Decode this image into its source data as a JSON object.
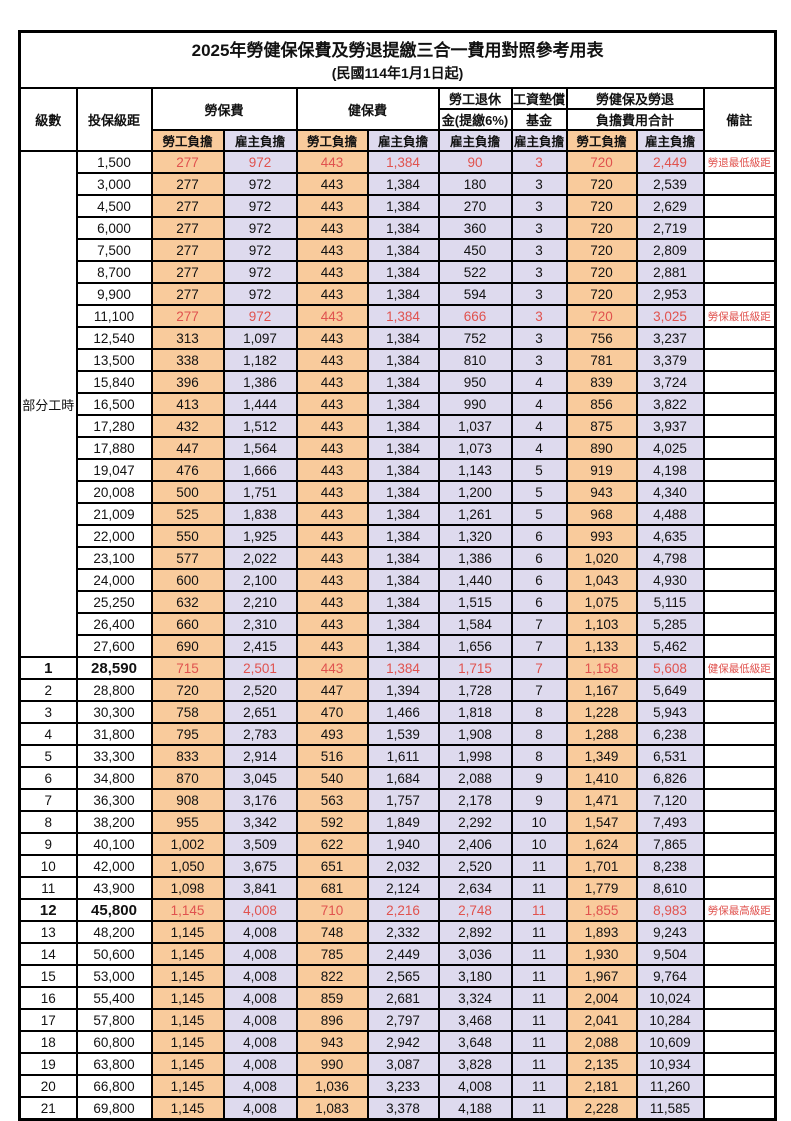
{
  "title": "2025年勞健保保費及勞退提繳三合一費用對照參考用表",
  "subtitle": "(民國114年1月1日起)",
  "header": {
    "level": "級數",
    "salary_bracket": "投保級距",
    "labor_fee": "勞保費",
    "health_fee": "健保費",
    "pension_line1": "勞工退休",
    "pension_line2": "金(提繳6%)",
    "wage_fund_line1": "工資墊償",
    "wage_fund_line2": "基金",
    "total_line1": "勞健保及勞退",
    "total_line2": "負擔費用合計",
    "remark": "備註",
    "employee_share": "勞工負擔",
    "employer_share": "雇主負擔"
  },
  "part_time_label": "部分工時",
  "colors": {
    "employee_bg": "#f9cb9c",
    "employer_bg": "#dedaee",
    "highlight_red": "#e0524e",
    "border": "#000000"
  },
  "rows": [
    {
      "level": "",
      "amount": "1,500",
      "cells": [
        "277",
        "972",
        "443",
        "1,384",
        "90",
        "3",
        "720",
        "2,449"
      ],
      "remark": "勞退最低級距",
      "red": true,
      "bold": false
    },
    {
      "level": "",
      "amount": "3,000",
      "cells": [
        "277",
        "972",
        "443",
        "1,384",
        "180",
        "3",
        "720",
        "2,539"
      ],
      "remark": "",
      "red": false,
      "bold": false
    },
    {
      "level": "",
      "amount": "4,500",
      "cells": [
        "277",
        "972",
        "443",
        "1,384",
        "270",
        "3",
        "720",
        "2,629"
      ],
      "remark": "",
      "red": false,
      "bold": false
    },
    {
      "level": "",
      "amount": "6,000",
      "cells": [
        "277",
        "972",
        "443",
        "1,384",
        "360",
        "3",
        "720",
        "2,719"
      ],
      "remark": "",
      "red": false,
      "bold": false
    },
    {
      "level": "",
      "amount": "7,500",
      "cells": [
        "277",
        "972",
        "443",
        "1,384",
        "450",
        "3",
        "720",
        "2,809"
      ],
      "remark": "",
      "red": false,
      "bold": false
    },
    {
      "level": "",
      "amount": "8,700",
      "cells": [
        "277",
        "972",
        "443",
        "1,384",
        "522",
        "3",
        "720",
        "2,881"
      ],
      "remark": "",
      "red": false,
      "bold": false
    },
    {
      "level": "",
      "amount": "9,900",
      "cells": [
        "277",
        "972",
        "443",
        "1,384",
        "594",
        "3",
        "720",
        "2,953"
      ],
      "remark": "",
      "red": false,
      "bold": false
    },
    {
      "level": "",
      "amount": "11,100",
      "cells": [
        "277",
        "972",
        "443",
        "1,384",
        "666",
        "3",
        "720",
        "3,025"
      ],
      "remark": "勞保最低級距",
      "red": true,
      "bold": false
    },
    {
      "level": "",
      "amount": "12,540",
      "cells": [
        "313",
        "1,097",
        "443",
        "1,384",
        "752",
        "3",
        "756",
        "3,237"
      ],
      "remark": "",
      "red": false,
      "bold": false
    },
    {
      "level": "",
      "amount": "13,500",
      "cells": [
        "338",
        "1,182",
        "443",
        "1,384",
        "810",
        "3",
        "781",
        "3,379"
      ],
      "remark": "",
      "red": false,
      "bold": false
    },
    {
      "level": "",
      "amount": "15,840",
      "cells": [
        "396",
        "1,386",
        "443",
        "1,384",
        "950",
        "4",
        "839",
        "3,724"
      ],
      "remark": "",
      "red": false,
      "bold": false
    },
    {
      "level": "",
      "amount": "16,500",
      "cells": [
        "413",
        "1,444",
        "443",
        "1,384",
        "990",
        "4",
        "856",
        "3,822"
      ],
      "remark": "",
      "red": false,
      "bold": false
    },
    {
      "level": "",
      "amount": "17,280",
      "cells": [
        "432",
        "1,512",
        "443",
        "1,384",
        "1,037",
        "4",
        "875",
        "3,937"
      ],
      "remark": "",
      "red": false,
      "bold": false
    },
    {
      "level": "",
      "amount": "17,880",
      "cells": [
        "447",
        "1,564",
        "443",
        "1,384",
        "1,073",
        "4",
        "890",
        "4,025"
      ],
      "remark": "",
      "red": false,
      "bold": false
    },
    {
      "level": "",
      "amount": "19,047",
      "cells": [
        "476",
        "1,666",
        "443",
        "1,384",
        "1,143",
        "5",
        "919",
        "4,198"
      ],
      "remark": "",
      "red": false,
      "bold": false
    },
    {
      "level": "",
      "amount": "20,008",
      "cells": [
        "500",
        "1,751",
        "443",
        "1,384",
        "1,200",
        "5",
        "943",
        "4,340"
      ],
      "remark": "",
      "red": false,
      "bold": false
    },
    {
      "level": "",
      "amount": "21,009",
      "cells": [
        "525",
        "1,838",
        "443",
        "1,384",
        "1,261",
        "5",
        "968",
        "4,488"
      ],
      "remark": "",
      "red": false,
      "bold": false
    },
    {
      "level": "",
      "amount": "22,000",
      "cells": [
        "550",
        "1,925",
        "443",
        "1,384",
        "1,320",
        "6",
        "993",
        "4,635"
      ],
      "remark": "",
      "red": false,
      "bold": false
    },
    {
      "level": "",
      "amount": "23,100",
      "cells": [
        "577",
        "2,022",
        "443",
        "1,384",
        "1,386",
        "6",
        "1,020",
        "4,798"
      ],
      "remark": "",
      "red": false,
      "bold": false
    },
    {
      "level": "",
      "amount": "24,000",
      "cells": [
        "600",
        "2,100",
        "443",
        "1,384",
        "1,440",
        "6",
        "1,043",
        "4,930"
      ],
      "remark": "",
      "red": false,
      "bold": false
    },
    {
      "level": "",
      "amount": "25,250",
      "cells": [
        "632",
        "2,210",
        "443",
        "1,384",
        "1,515",
        "6",
        "1,075",
        "5,115"
      ],
      "remark": "",
      "red": false,
      "bold": false
    },
    {
      "level": "",
      "amount": "26,400",
      "cells": [
        "660",
        "2,310",
        "443",
        "1,384",
        "1,584",
        "7",
        "1,103",
        "5,285"
      ],
      "remark": "",
      "red": false,
      "bold": false
    },
    {
      "level": "",
      "amount": "27,600",
      "cells": [
        "690",
        "2,415",
        "443",
        "1,384",
        "1,656",
        "7",
        "1,133",
        "5,462"
      ],
      "remark": "",
      "red": false,
      "bold": false
    },
    {
      "level": "1",
      "amount": "28,590",
      "cells": [
        "715",
        "2,501",
        "443",
        "1,384",
        "1,715",
        "7",
        "1,158",
        "5,608"
      ],
      "remark": "健保最低級距",
      "red": true,
      "bold": true
    },
    {
      "level": "2",
      "amount": "28,800",
      "cells": [
        "720",
        "2,520",
        "447",
        "1,394",
        "1,728",
        "7",
        "1,167",
        "5,649"
      ],
      "remark": "",
      "red": false,
      "bold": false
    },
    {
      "level": "3",
      "amount": "30,300",
      "cells": [
        "758",
        "2,651",
        "470",
        "1,466",
        "1,818",
        "8",
        "1,228",
        "5,943"
      ],
      "remark": "",
      "red": false,
      "bold": false
    },
    {
      "level": "4",
      "amount": "31,800",
      "cells": [
        "795",
        "2,783",
        "493",
        "1,539",
        "1,908",
        "8",
        "1,288",
        "6,238"
      ],
      "remark": "",
      "red": false,
      "bold": false
    },
    {
      "level": "5",
      "amount": "33,300",
      "cells": [
        "833",
        "2,914",
        "516",
        "1,611",
        "1,998",
        "8",
        "1,349",
        "6,531"
      ],
      "remark": "",
      "red": false,
      "bold": false
    },
    {
      "level": "6",
      "amount": "34,800",
      "cells": [
        "870",
        "3,045",
        "540",
        "1,684",
        "2,088",
        "9",
        "1,410",
        "6,826"
      ],
      "remark": "",
      "red": false,
      "bold": false
    },
    {
      "level": "7",
      "amount": "36,300",
      "cells": [
        "908",
        "3,176",
        "563",
        "1,757",
        "2,178",
        "9",
        "1,471",
        "7,120"
      ],
      "remark": "",
      "red": false,
      "bold": false
    },
    {
      "level": "8",
      "amount": "38,200",
      "cells": [
        "955",
        "3,342",
        "592",
        "1,849",
        "2,292",
        "10",
        "1,547",
        "7,493"
      ],
      "remark": "",
      "red": false,
      "bold": false
    },
    {
      "level": "9",
      "amount": "40,100",
      "cells": [
        "1,002",
        "3,509",
        "622",
        "1,940",
        "2,406",
        "10",
        "1,624",
        "7,865"
      ],
      "remark": "",
      "red": false,
      "bold": false
    },
    {
      "level": "10",
      "amount": "42,000",
      "cells": [
        "1,050",
        "3,675",
        "651",
        "2,032",
        "2,520",
        "11",
        "1,701",
        "8,238"
      ],
      "remark": "",
      "red": false,
      "bold": false
    },
    {
      "level": "11",
      "amount": "43,900",
      "cells": [
        "1,098",
        "3,841",
        "681",
        "2,124",
        "2,634",
        "11",
        "1,779",
        "8,610"
      ],
      "remark": "",
      "red": false,
      "bold": false
    },
    {
      "level": "12",
      "amount": "45,800",
      "cells": [
        "1,145",
        "4,008",
        "710",
        "2,216",
        "2,748",
        "11",
        "1,855",
        "8,983"
      ],
      "remark": "勞保最高級距",
      "red": true,
      "bold": true
    },
    {
      "level": "13",
      "amount": "48,200",
      "cells": [
        "1,145",
        "4,008",
        "748",
        "2,332",
        "2,892",
        "11",
        "1,893",
        "9,243"
      ],
      "remark": "",
      "red": false,
      "bold": false
    },
    {
      "level": "14",
      "amount": "50,600",
      "cells": [
        "1,145",
        "4,008",
        "785",
        "2,449",
        "3,036",
        "11",
        "1,930",
        "9,504"
      ],
      "remark": "",
      "red": false,
      "bold": false
    },
    {
      "level": "15",
      "amount": "53,000",
      "cells": [
        "1,145",
        "4,008",
        "822",
        "2,565",
        "3,180",
        "11",
        "1,967",
        "9,764"
      ],
      "remark": "",
      "red": false,
      "bold": false
    },
    {
      "level": "16",
      "amount": "55,400",
      "cells": [
        "1,145",
        "4,008",
        "859",
        "2,681",
        "3,324",
        "11",
        "2,004",
        "10,024"
      ],
      "remark": "",
      "red": false,
      "bold": false
    },
    {
      "level": "17",
      "amount": "57,800",
      "cells": [
        "1,145",
        "4,008",
        "896",
        "2,797",
        "3,468",
        "11",
        "2,041",
        "10,284"
      ],
      "remark": "",
      "red": false,
      "bold": false
    },
    {
      "level": "18",
      "amount": "60,800",
      "cells": [
        "1,145",
        "4,008",
        "943",
        "2,942",
        "3,648",
        "11",
        "2,088",
        "10,609"
      ],
      "remark": "",
      "red": false,
      "bold": false
    },
    {
      "level": "19",
      "amount": "63,800",
      "cells": [
        "1,145",
        "4,008",
        "990",
        "3,087",
        "3,828",
        "11",
        "2,135",
        "10,934"
      ],
      "remark": "",
      "red": false,
      "bold": false
    },
    {
      "level": "20",
      "amount": "66,800",
      "cells": [
        "1,145",
        "4,008",
        "1,036",
        "3,233",
        "4,008",
        "11",
        "2,181",
        "11,260"
      ],
      "remark": "",
      "red": false,
      "bold": false
    },
    {
      "level": "21",
      "amount": "69,800",
      "cells": [
        "1,145",
        "4,008",
        "1,083",
        "3,378",
        "4,188",
        "11",
        "2,228",
        "11,585"
      ],
      "remark": "",
      "red": false,
      "bold": false
    }
  ]
}
